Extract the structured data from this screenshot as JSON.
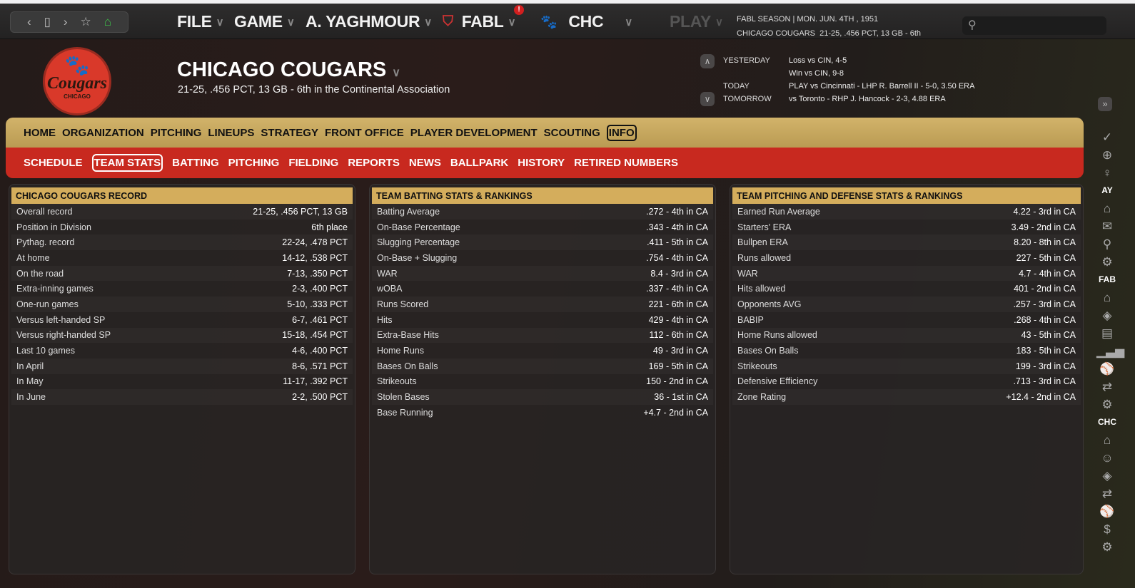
{
  "topbar": {
    "nav_icons": [
      "back-icon",
      "page-icon",
      "forward-icon",
      "star-icon",
      "home-icon"
    ],
    "menus": [
      {
        "label": "FILE"
      },
      {
        "label": "GAME"
      },
      {
        "label": "A. YAGHMOUR"
      },
      {
        "label": "FABL",
        "badge": "!"
      },
      {
        "label": "CHC"
      }
    ],
    "play_label": "PLAY",
    "season_line": "FABL SEASON  |  MON. JUN. 4TH , 1951",
    "team_line_name": "CHICAGO COUGARS",
    "team_line_record": "21-25, .456 PCT, 13 GB - 6th",
    "search_placeholder": ""
  },
  "header": {
    "logo_text": "Cougars",
    "logo_city": "CHICAGO",
    "team_name": "CHICAGO COUGARS",
    "team_summary": "21-25, .456 PCT, 13 GB - 6th in the Continental Association",
    "schedule": [
      {
        "label": "YESTERDAY",
        "value": "Loss vs CIN, 4-5"
      },
      {
        "label": "",
        "value": "Win vs CIN, 9-8"
      },
      {
        "label": "TODAY",
        "value": "PLAY vs Cincinnati - LHP R. Barrell II - 5-0, 3.50 ERA"
      },
      {
        "label": "TOMORROW",
        "value": "vs Toronto - RHP J. Hancock - 2-3, 4.88 ERA"
      }
    ]
  },
  "nav_primary": {
    "items": [
      "HOME",
      "ORGANIZATION",
      "PITCHING",
      "LINEUPS",
      "STRATEGY",
      "FRONT OFFICE",
      "PLAYER DEVELOPMENT",
      "SCOUTING",
      "INFO"
    ],
    "selected": "INFO"
  },
  "nav_secondary": {
    "items": [
      "SCHEDULE",
      "TEAM STATS",
      "BATTING",
      "PITCHING",
      "FIELDING",
      "REPORTS",
      "NEWS",
      "BALLPARK",
      "HISTORY",
      "RETIRED NUMBERS"
    ],
    "selected": "TEAM STATS"
  },
  "panels": [
    {
      "title": "CHICAGO COUGARS RECORD",
      "rows": [
        [
          "Overall record",
          "21-25, .456 PCT, 13 GB"
        ],
        [
          "Position in Division",
          "6th place"
        ],
        [
          "Pythag. record",
          "22-24, .478 PCT"
        ],
        [
          "At home",
          "14-12, .538 PCT"
        ],
        [
          "On the road",
          "7-13, .350 PCT"
        ],
        [
          "Extra-inning games",
          "2-3, .400 PCT"
        ],
        [
          "One-run games",
          "5-10, .333 PCT"
        ],
        [
          "Versus left-handed SP",
          "6-7, .461 PCT"
        ],
        [
          "Versus right-handed SP",
          "15-18, .454 PCT"
        ],
        [
          "Last 10 games",
          "4-6, .400 PCT"
        ],
        [
          "In April",
          "8-6, .571 PCT"
        ],
        [
          "In May",
          "11-17, .392 PCT"
        ],
        [
          "In June",
          "2-2, .500 PCT"
        ]
      ]
    },
    {
      "title": "TEAM BATTING STATS & RANKINGS",
      "rows": [
        [
          "Batting Average",
          ".272 - 4th in CA"
        ],
        [
          "On-Base Percentage",
          ".343 - 4th in CA"
        ],
        [
          "Slugging Percentage",
          ".411 - 5th in CA"
        ],
        [
          "On-Base + Slugging",
          ".754 - 4th in CA"
        ],
        [
          "WAR",
          "8.4 - 3rd in CA"
        ],
        [
          "wOBA",
          ".337 - 4th in CA"
        ],
        [
          "Runs Scored",
          "221 - 6th in CA"
        ],
        [
          "Hits",
          "429 - 4th in CA"
        ],
        [
          "Extra-Base Hits",
          "112 - 6th in CA"
        ],
        [
          "Home Runs",
          "49 - 3rd in CA"
        ],
        [
          "Bases On Balls",
          "169 - 5th in CA"
        ],
        [
          "Strikeouts",
          "150 - 2nd in CA"
        ],
        [
          "Stolen Bases",
          "36 - 1st in CA"
        ],
        [
          "Base Running",
          "+4.7 - 2nd in CA"
        ]
      ]
    },
    {
      "title": "TEAM PITCHING AND DEFENSE STATS & RANKINGS",
      "rows": [
        [
          "Earned Run Average",
          "4.22 - 3rd in CA"
        ],
        [
          "Starters' ERA",
          "3.49 - 2nd in CA"
        ],
        [
          "Bullpen ERA",
          "8.20 - 8th in CA"
        ],
        [
          "Runs allowed",
          "227 - 5th in CA"
        ],
        [
          "WAR",
          "4.7 - 4th in CA"
        ],
        [
          "Hits allowed",
          "401 - 2nd in CA"
        ],
        [
          "Opponents AVG",
          ".257 - 3rd in CA"
        ],
        [
          "BABIP",
          ".268 - 4th in CA"
        ],
        [
          "Home Runs allowed",
          "43 - 5th in CA"
        ],
        [
          "Bases On Balls",
          "183 - 5th in CA"
        ],
        [
          "Strikeouts",
          "199 - 3rd in CA"
        ],
        [
          "Defensive Efficiency",
          ".713 - 3rd in CA"
        ],
        [
          "Zone Rating",
          "+12.4 - 2nd in CA"
        ]
      ]
    }
  ],
  "sidebar": {
    "items": [
      {
        "icon": "check-icon",
        "g": "✓"
      },
      {
        "icon": "globe-icon",
        "g": "⊕"
      },
      {
        "icon": "lightbulb-icon",
        "g": "♀"
      },
      {
        "label": "AY"
      },
      {
        "icon": "home-icon",
        "g": "⌂"
      },
      {
        "icon": "mail-icon",
        "g": "✉"
      },
      {
        "icon": "search-icon",
        "g": "⚲"
      },
      {
        "icon": "gear-icon",
        "g": "⚙"
      },
      {
        "label": "FAB"
      },
      {
        "icon": "home-icon",
        "g": "⌂"
      },
      {
        "icon": "diamond-icon",
        "g": "◈"
      },
      {
        "icon": "id-card-icon",
        "g": "▤"
      },
      {
        "icon": "bar-chart-icon",
        "g": "▁▃▅"
      },
      {
        "icon": "baseball-icon",
        "g": "⚾"
      },
      {
        "icon": "trade-icon",
        "g": "⇄"
      },
      {
        "icon": "gear-icon",
        "g": "⚙"
      },
      {
        "label": "CHC"
      },
      {
        "icon": "home-icon",
        "g": "⌂"
      },
      {
        "icon": "coach-icon",
        "g": "☺"
      },
      {
        "icon": "diamond-icon",
        "g": "◈"
      },
      {
        "icon": "trade-icon",
        "g": "⇄"
      },
      {
        "icon": "baseball-icon",
        "g": "⚾"
      },
      {
        "icon": "dollar-icon",
        "g": "$"
      },
      {
        "icon": "gear-icon",
        "g": "⚙"
      }
    ]
  },
  "colors": {
    "gold": "#d4ad5c",
    "red": "#c8291f",
    "accent_green": "#3fc24a"
  }
}
